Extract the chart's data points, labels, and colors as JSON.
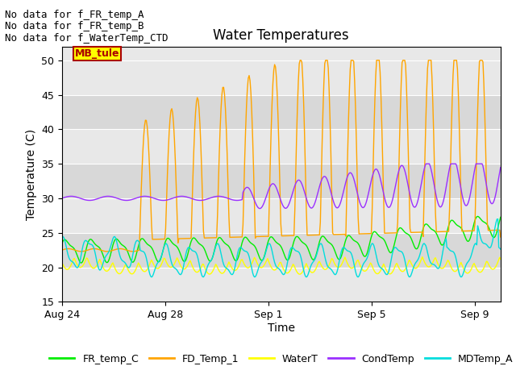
{
  "title": "Water Temperatures",
  "xlabel": "Time",
  "ylabel": "Temperature (C)",
  "ylim": [
    15,
    52
  ],
  "yticks": [
    15,
    20,
    25,
    30,
    35,
    40,
    45,
    50
  ],
  "background_color": "#ffffff",
  "plot_bg_color": "#e8e8e8",
  "annotations": [
    "No data for f_FR_temp_A",
    "No data for f_FR_temp_B",
    "No data for f_WaterTemp_CTD"
  ],
  "mb_tule_label": "MB_tule",
  "legend_entries": [
    "FR_temp_C",
    "FD_Temp_1",
    "WaterT",
    "CondTemp",
    "MDTemp_A"
  ],
  "legend_colors": [
    "#00ee00",
    "#ffa500",
    "#ffff00",
    "#9b30ff",
    "#00dddd"
  ],
  "x_tick_labels": [
    "Aug 24",
    "Aug 28",
    "Sep 1",
    "Sep 5",
    "Sep 9"
  ],
  "grid_color": "#ffffff",
  "line_width": 1.0,
  "title_fontsize": 12,
  "axis_fontsize": 10,
  "tick_fontsize": 9,
  "annot_fontsize": 9
}
